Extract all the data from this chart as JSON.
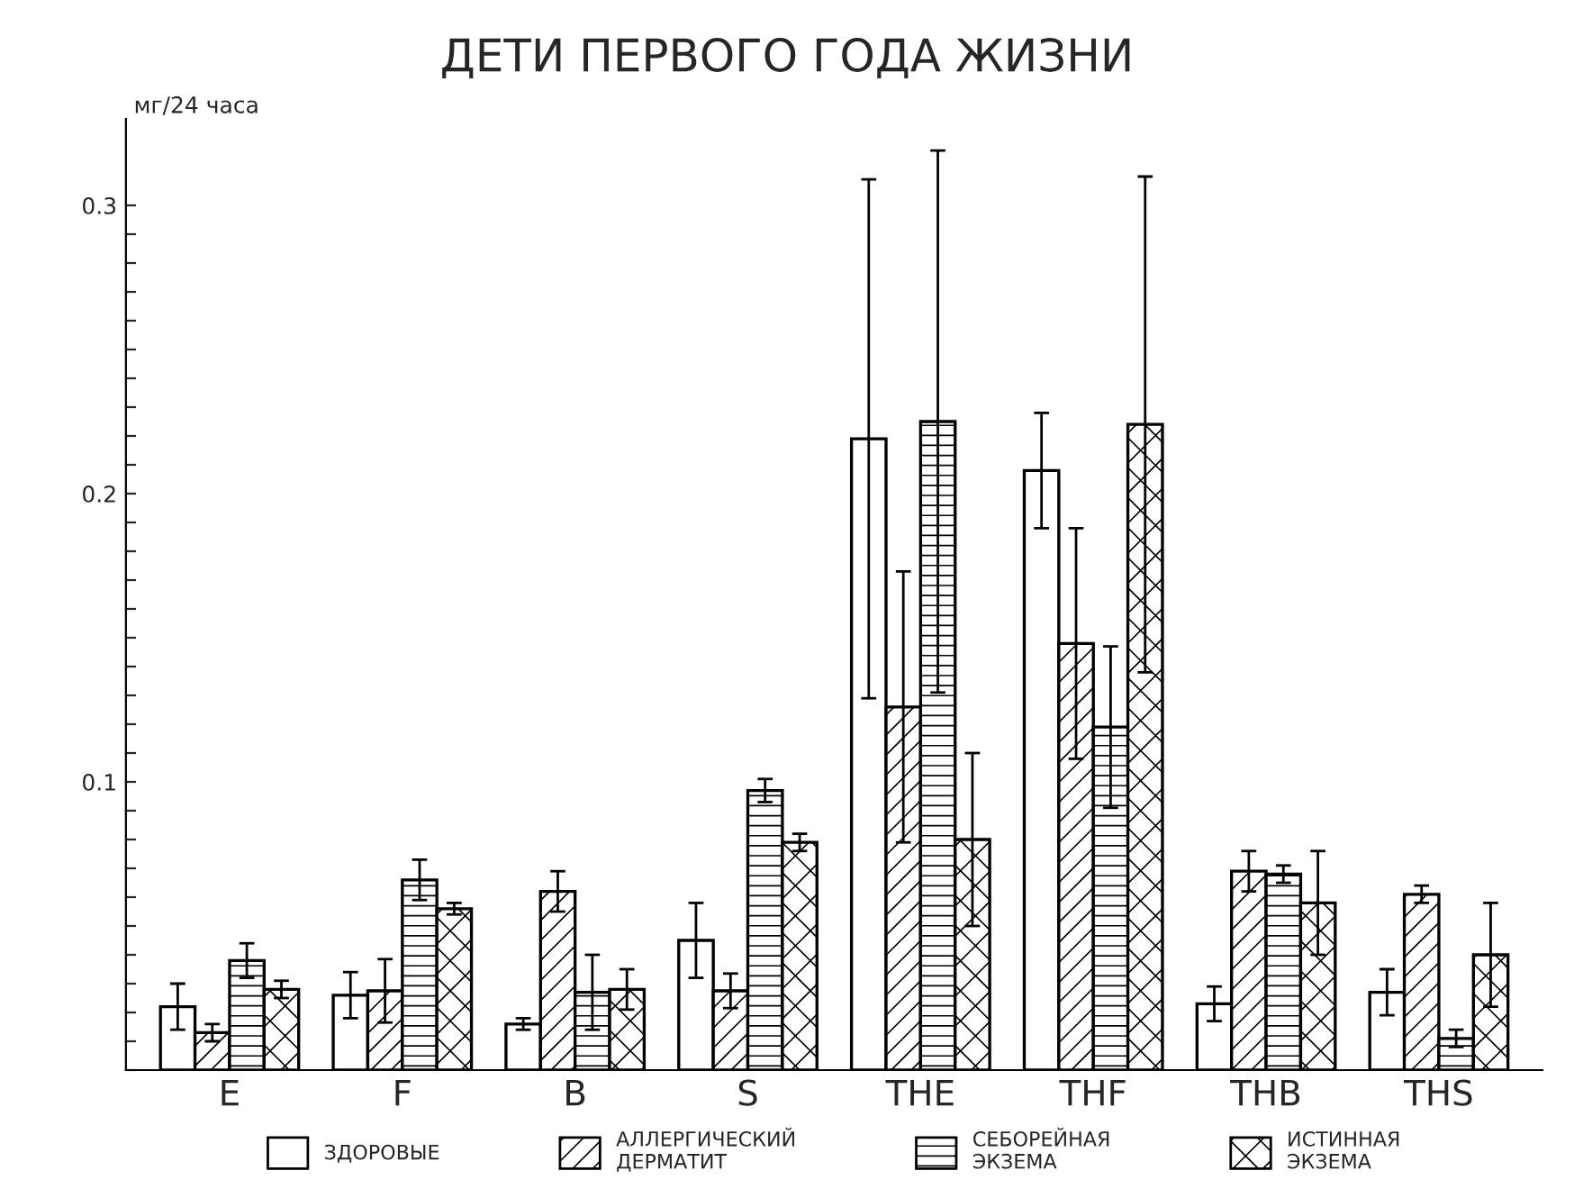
{
  "chart_data": {
    "type": "bar",
    "title": "ДЕТИ ПЕРВОГО ГОДА ЖИЗНИ",
    "ylabel": "мг/24 часа",
    "categories": [
      "E",
      "F",
      "B",
      "S",
      "THE",
      "THF",
      "THB",
      "THS"
    ],
    "series": [
      {
        "name": "ЗДОРОВЫЕ",
        "color": "#ffffff",
        "values": [
          0.022,
          0.026,
          0.016,
          0.045,
          0.219,
          0.208,
          0.023,
          0.027
        ],
        "errors": [
          0.008,
          0.008,
          0.002,
          0.013,
          0.09,
          0.02,
          0.006,
          0.008
        ]
      },
      {
        "name": "АЛЛЕРГИЧЕСКИЙ\nДЕРМАТИТ",
        "color": "#000000",
        "values": [
          0.013,
          0.0275,
          0.062,
          0.0275,
          0.126,
          0.148,
          0.069,
          0.061
        ],
        "errors": [
          0.003,
          0.011,
          0.007,
          0.006,
          0.047,
          0.04,
          0.007,
          0.003
        ]
      },
      {
        "name": "СЕБОРЕЙНАЯ\nЭКЗЕМА",
        "color": "#000000",
        "values": [
          0.038,
          0.066,
          0.027,
          0.097,
          0.225,
          0.119,
          0.068,
          0.011
        ],
        "errors": [
          0.006,
          0.007,
          0.013,
          0.004,
          0.094,
          0.028,
          0.003,
          0.003
        ]
      },
      {
        "name": "ИСТИННАЯ\nЭКЗЕМА",
        "color": "#000000",
        "values": [
          0.028,
          0.056,
          0.028,
          0.079,
          0.08,
          0.224,
          0.058,
          0.04
        ],
        "errors": [
          0.003,
          0.002,
          0.007,
          0.003,
          0.03,
          0.086,
          0.018,
          0.018
        ]
      }
    ],
    "ylim": [
      0,
      0.33
    ],
    "yticks": [
      {
        "value": 0,
        "label": null
      },
      {
        "value": 0.01,
        "label": null
      },
      {
        "value": 0.02,
        "label": null
      },
      {
        "value": 0.03,
        "label": null
      },
      {
        "value": 0.04,
        "label": null
      },
      {
        "value": 0.05,
        "label": null
      },
      {
        "value": 0.06,
        "label": null
      },
      {
        "value": 0.07,
        "label": null
      },
      {
        "value": 0.08,
        "label": null
      },
      {
        "value": 0.09,
        "label": null
      },
      0.1,
      {
        "value": 0.11,
        "label": null
      },
      {
        "value": 0.12,
        "label": null
      },
      {
        "value": 0.13,
        "label": null
      },
      {
        "value": 0.14,
        "label": null
      },
      {
        "value": 0.15,
        "label": null
      },
      {
        "value": 0.16,
        "label": null
      },
      {
        "value": 0.17,
        "label": null
      },
      {
        "value": 0.18,
        "label": null
      },
      {
        "value": 0.19,
        "label": null
      },
      0.2,
      {
        "value": 0.21,
        "label": null
      },
      {
        "value": 0.22,
        "label": null
      },
      {
        "value": 0.23,
        "label": null
      },
      {
        "value": 0.24,
        "label": null
      },
      {
        "value": 0.25,
        "label": null
      },
      {
        "value": 0.26,
        "label": null
      },
      {
        "value": 0.27,
        "label": null
      },
      {
        "value": 0.28,
        "label": null
      },
      {
        "value": 0.29,
        "label": null
      },
      0.3
    ],
    "grid": false,
    "legend": "bottom"
  }
}
